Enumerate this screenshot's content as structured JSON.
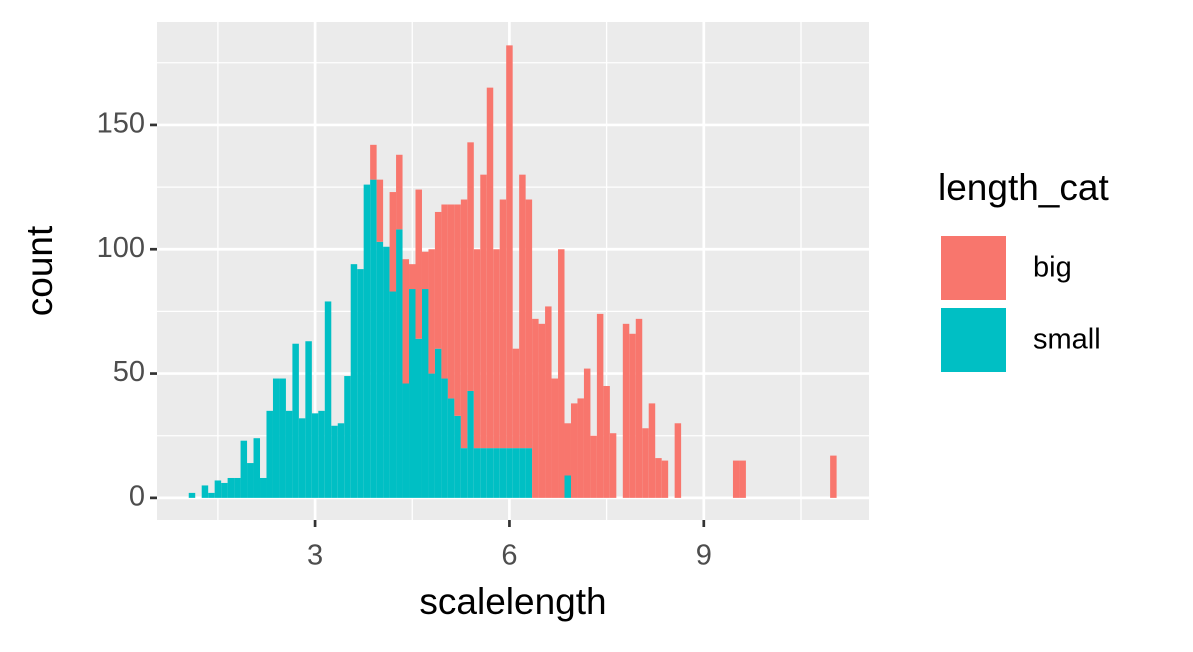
{
  "chart_data": {
    "type": "histogram",
    "x_label": "scalelength",
    "y_label": "count",
    "legend_title": "length_cat",
    "bins": [
      1.05,
      1.15,
      1.25,
      1.35,
      1.45,
      1.55,
      1.65,
      1.75,
      1.85,
      1.95,
      2.05,
      2.15,
      2.25,
      2.35,
      2.45,
      2.55,
      2.65,
      2.75,
      2.85,
      2.95,
      3.05,
      3.15,
      3.25,
      3.35,
      3.45,
      3.55,
      3.65,
      3.75,
      3.85,
      3.95,
      4.05,
      4.15,
      4.25,
      4.35,
      4.45,
      4.55,
      4.65,
      4.75,
      4.85,
      4.95,
      5.05,
      5.15,
      5.25,
      5.35,
      5.45,
      5.55,
      5.65,
      5.75,
      5.85,
      5.95,
      6.05,
      6.15,
      6.25,
      6.35,
      6.45,
      6.55,
      6.65,
      6.75,
      6.85,
      6.95,
      7.05,
      7.15,
      7.25,
      7.35,
      7.45,
      7.55,
      7.65,
      7.75,
      7.85,
      7.95,
      8.05,
      8.15,
      8.25,
      8.35,
      8.45,
      8.55,
      8.65,
      8.75,
      8.85,
      8.95,
      9.05,
      9.15,
      9.25,
      9.35,
      9.45,
      9.55,
      9.65,
      9.75,
      9.85,
      9.95,
      10.05,
      10.15,
      10.25,
      10.35,
      10.45,
      10.55,
      10.65,
      10.75,
      10.85,
      10.95,
      11.05
    ],
    "series": [
      {
        "name": "big",
        "color": "#f8766d",
        "values": [
          0,
          0,
          0,
          0,
          0,
          0,
          0,
          0,
          0,
          0,
          0,
          0,
          0,
          0,
          0,
          0,
          0,
          0,
          0,
          0,
          0,
          0,
          0,
          0,
          0,
          0,
          0,
          0,
          14,
          25,
          0,
          40,
          30,
          50,
          10,
          60,
          15,
          50,
          55,
          70,
          78,
          85,
          100,
          100,
          80,
          110,
          145,
          80,
          100,
          162,
          40,
          110,
          100,
          72,
          70,
          77,
          48,
          100,
          21,
          38,
          40,
          52,
          25,
          74,
          45,
          26,
          0,
          70,
          66,
          72,
          28,
          38,
          16,
          15,
          0,
          30,
          0,
          0,
          0,
          0,
          0,
          0,
          0,
          0,
          15,
          15,
          0,
          0,
          0,
          0,
          0,
          0,
          0,
          0,
          0,
          0,
          0,
          0,
          0,
          17
        ]
      },
      {
        "name": "small",
        "color": "#00bfc4",
        "values": [
          2,
          0,
          5,
          2,
          7,
          6,
          8,
          8,
          23,
          14,
          24,
          8,
          35,
          48,
          48,
          35,
          62,
          32,
          63,
          34,
          35,
          79,
          29,
          30,
          49,
          94,
          92,
          126,
          128,
          103,
          101,
          83,
          108,
          46,
          84,
          64,
          84,
          50,
          60,
          48,
          40,
          33,
          20,
          43,
          20,
          20,
          20,
          20,
          20,
          20,
          20,
          20,
          20,
          0,
          0,
          0,
          0,
          0,
          9,
          0,
          0,
          0,
          0,
          0,
          0,
          0,
          0,
          0,
          0,
          0,
          0,
          0,
          0,
          0,
          0,
          0,
          0,
          0,
          0,
          0,
          0,
          0,
          0,
          0,
          0,
          0,
          0,
          0,
          0,
          0,
          0,
          0,
          0,
          0,
          0,
          0,
          0,
          0,
          0,
          0
        ]
      }
    ],
    "stacked": true,
    "xlim": [
      0.56,
      11.55
    ],
    "xticks": [
      3,
      6,
      9
    ],
    "xminorticks": [
      1.5,
      4.5,
      7.5,
      10.5
    ],
    "ylim": [
      -8.9,
      191.4
    ],
    "yticks": [
      0,
      50,
      100,
      150
    ],
    "yminorticks": [
      25,
      75,
      125,
      175
    ],
    "grid": true,
    "legend": "right"
  }
}
